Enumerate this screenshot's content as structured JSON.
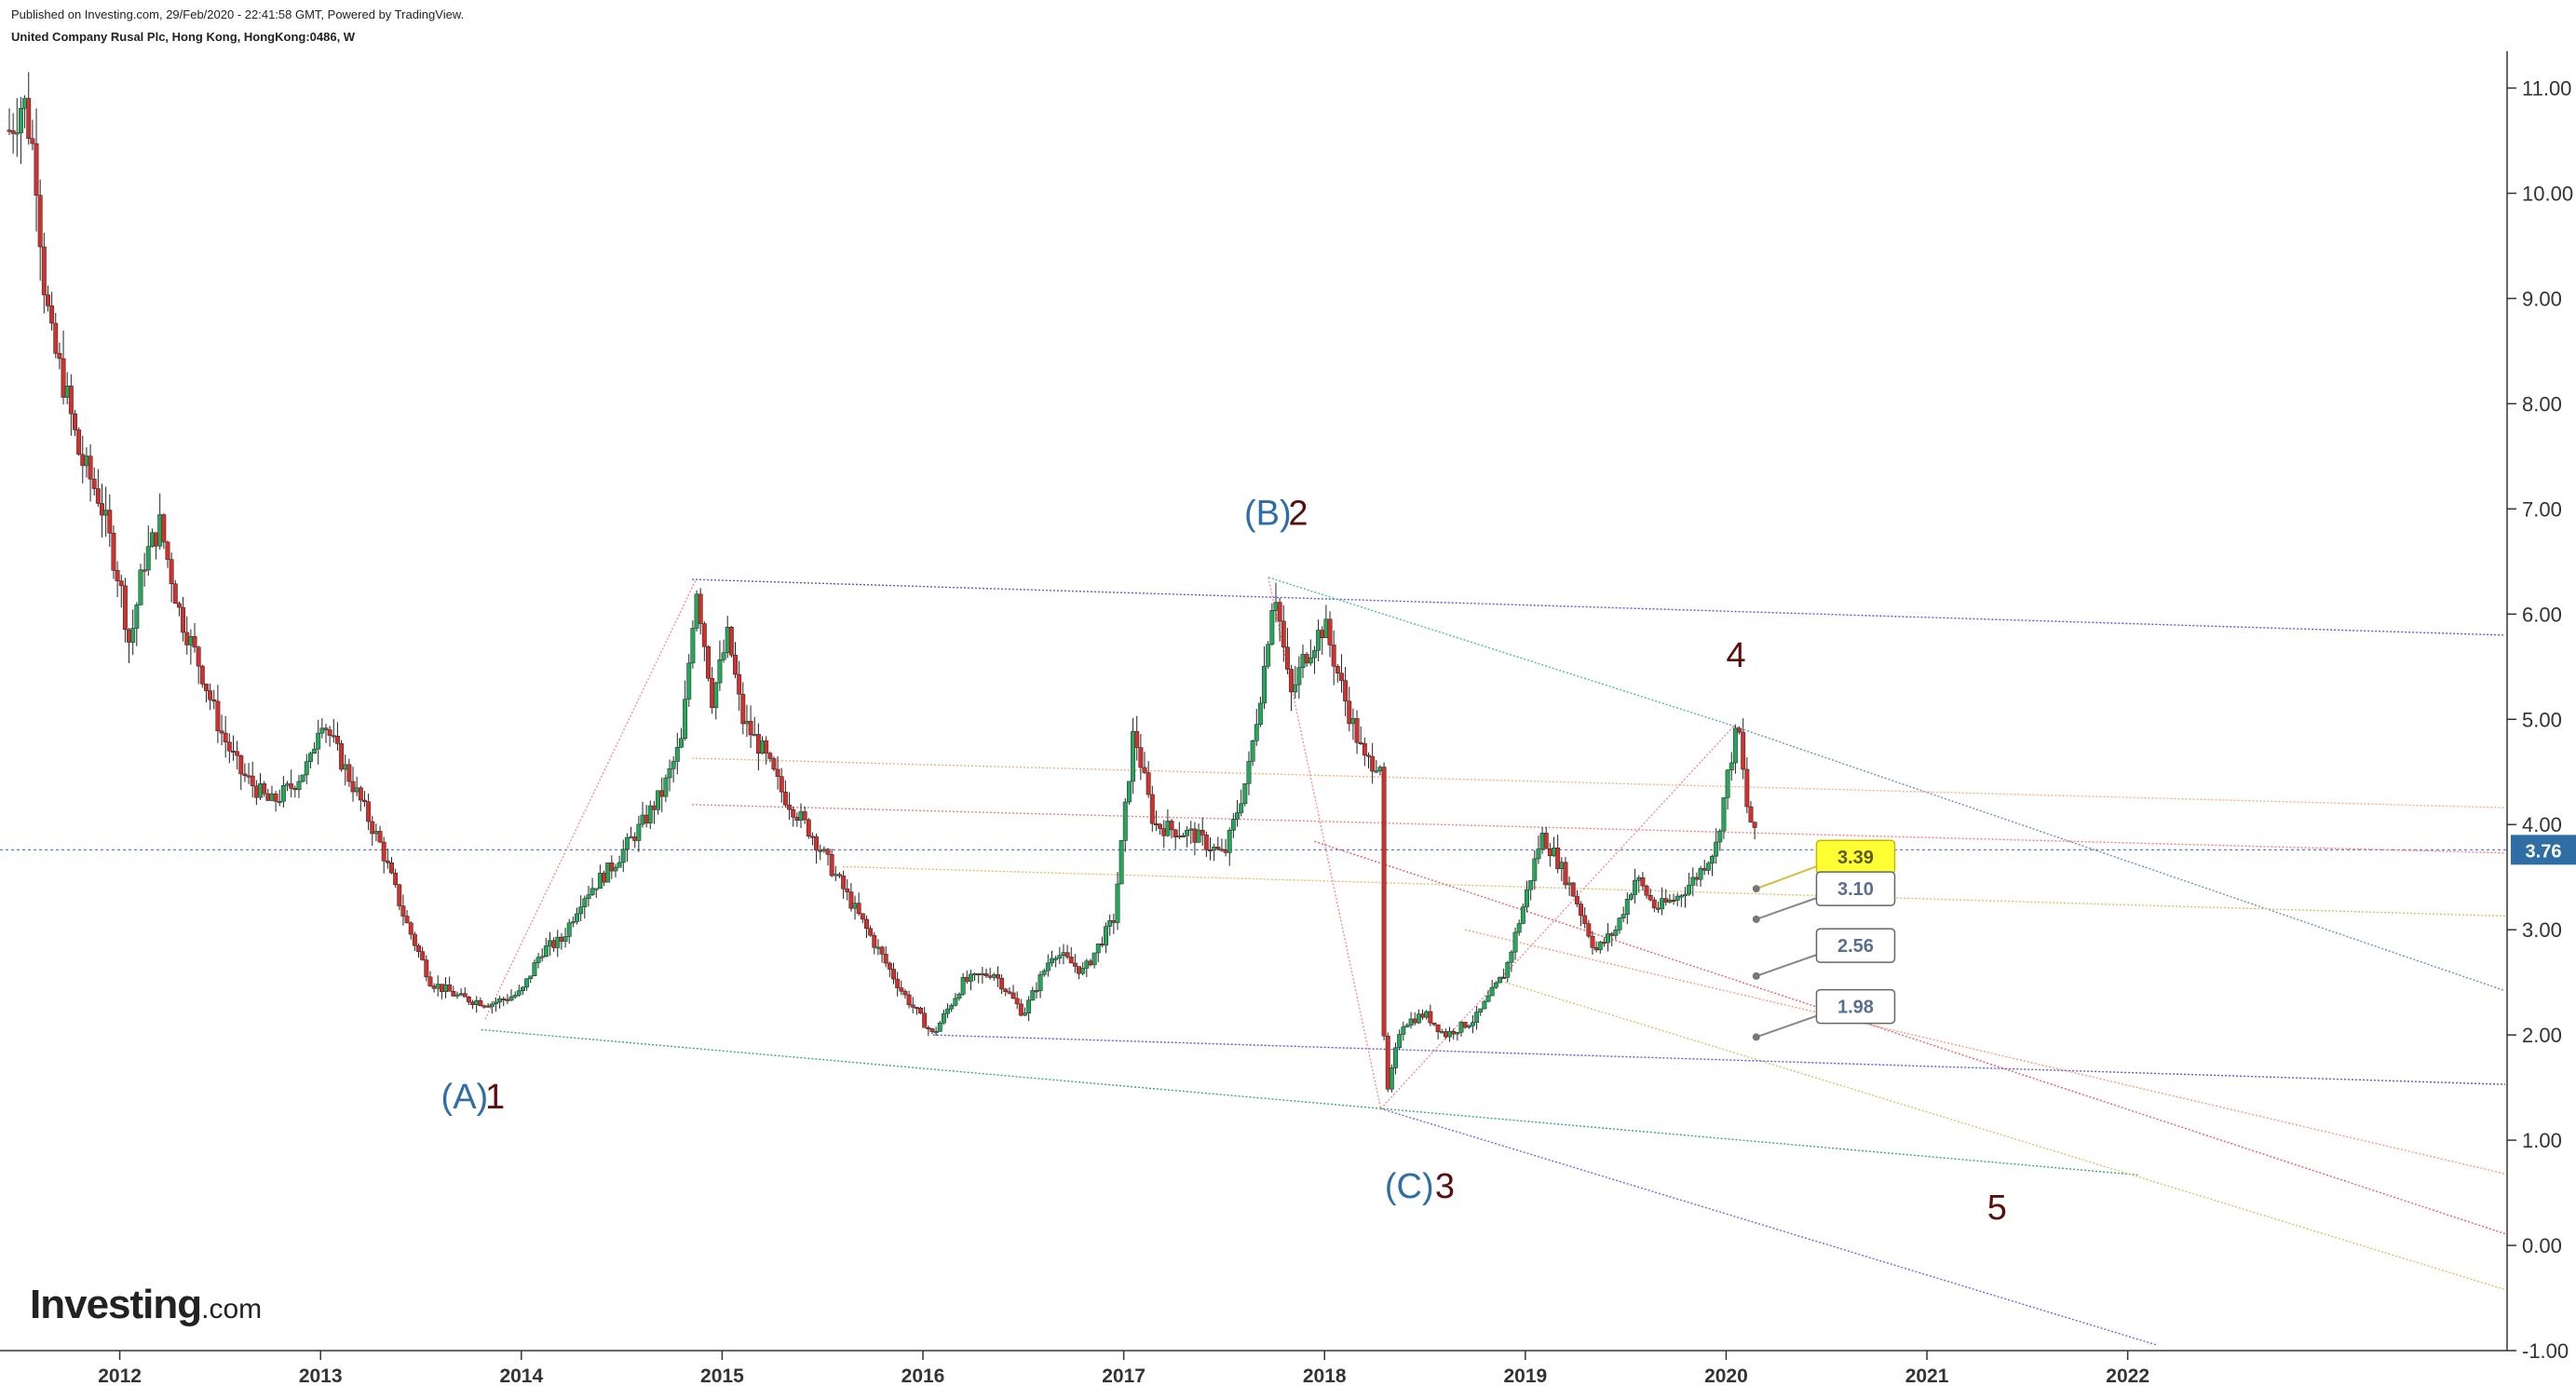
{
  "header": {
    "published": "Published on Investing.com, 29/Feb/2020 - 22:41:58 GMT, Powered by TradingView.",
    "instrument": "United Company Rusal Plc, Hong Kong, HongKong:0486, W"
  },
  "logo": {
    "brand": "Investing",
    "suffix": ".com"
  },
  "colors": {
    "up": "#26a65b",
    "down": "#d0312d",
    "wave_blue": "#2f6ea5",
    "wave_dark": "#5a0f0f",
    "current": "#2f6ea5",
    "highlight": "#ffff33"
  },
  "chart_data": {
    "type": "candlestick",
    "title": "",
    "x_axis": {
      "ticks": [
        "2012",
        "2013",
        "2014",
        "2015",
        "2016",
        "2017",
        "2018",
        "2019",
        "2020",
        "2021",
        "2022"
      ],
      "range": [
        2011.45,
        2023.88
      ]
    },
    "y_axis": {
      "ticks": [
        "11.00",
        "10.00",
        "9.00",
        "8.00",
        "7.00",
        "6.00",
        "5.00",
        "4.00",
        "3.00",
        "2.00",
        "1.00",
        "0.00",
        "-1.00"
      ],
      "range": [
        -1.0,
        11.35
      ],
      "side": "right"
    },
    "price_path": [
      [
        2011.45,
        10.6
      ],
      [
        2011.52,
        10.9
      ],
      [
        2011.58,
        10.3
      ],
      [
        2011.62,
        9.2
      ],
      [
        2011.66,
        8.6
      ],
      [
        2011.72,
        8.2
      ],
      [
        2011.8,
        7.5
      ],
      [
        2011.9,
        7.1
      ],
      [
        2012.0,
        6.3
      ],
      [
        2012.05,
        5.7
      ],
      [
        2012.12,
        6.5
      ],
      [
        2012.2,
        6.85
      ],
      [
        2012.3,
        6.0
      ],
      [
        2012.4,
        5.5
      ],
      [
        2012.5,
        4.9
      ],
      [
        2012.6,
        4.5
      ],
      [
        2012.75,
        4.2
      ],
      [
        2012.85,
        4.35
      ],
      [
        2012.95,
        4.6
      ],
      [
        2013.0,
        5.05
      ],
      [
        2013.08,
        4.7
      ],
      [
        2013.18,
        4.3
      ],
      [
        2013.3,
        3.8
      ],
      [
        2013.42,
        3.1
      ],
      [
        2013.55,
        2.5
      ],
      [
        2013.7,
        2.35
      ],
      [
        2013.85,
        2.3
      ],
      [
        2014.0,
        2.4
      ],
      [
        2014.1,
        2.8
      ],
      [
        2014.2,
        2.9
      ],
      [
        2014.3,
        3.3
      ],
      [
        2014.45,
        3.6
      ],
      [
        2014.6,
        4.0
      ],
      [
        2014.7,
        4.3
      ],
      [
        2014.8,
        4.8
      ],
      [
        2014.87,
        6.3
      ],
      [
        2014.95,
        5.2
      ],
      [
        2015.03,
        5.8
      ],
      [
        2015.1,
        5.0
      ],
      [
        2015.2,
        4.7
      ],
      [
        2015.3,
        4.3
      ],
      [
        2015.45,
        3.9
      ],
      [
        2015.6,
        3.4
      ],
      [
        2015.75,
        2.9
      ],
      [
        2015.9,
        2.4
      ],
      [
        2016.05,
        2.0
      ],
      [
        2016.2,
        2.5
      ],
      [
        2016.35,
        2.6
      ],
      [
        2016.5,
        2.2
      ],
      [
        2016.65,
        2.8
      ],
      [
        2016.8,
        2.6
      ],
      [
        2016.95,
        3.1
      ],
      [
        2017.05,
        4.9
      ],
      [
        2017.15,
        4.0
      ],
      [
        2017.35,
        3.9
      ],
      [
        2017.5,
        3.7
      ],
      [
        2017.62,
        4.5
      ],
      [
        2017.7,
        5.5
      ],
      [
        2017.75,
        6.3
      ],
      [
        2017.83,
        5.2
      ],
      [
        2017.9,
        5.6
      ],
      [
        2018.0,
        5.9
      ],
      [
        2018.1,
        5.2
      ],
      [
        2018.2,
        4.6
      ],
      [
        2018.28,
        4.6
      ],
      [
        2018.3,
        1.32
      ],
      [
        2018.38,
        2.1
      ],
      [
        2018.5,
        2.2
      ],
      [
        2018.6,
        2.0
      ],
      [
        2018.75,
        2.15
      ],
      [
        2018.9,
        2.6
      ],
      [
        2019.0,
        3.3
      ],
      [
        2019.08,
        3.9
      ],
      [
        2019.15,
        3.7
      ],
      [
        2019.25,
        3.3
      ],
      [
        2019.35,
        2.8
      ],
      [
        2019.45,
        3.0
      ],
      [
        2019.55,
        3.5
      ],
      [
        2019.65,
        3.2
      ],
      [
        2019.75,
        3.3
      ],
      [
        2019.85,
        3.5
      ],
      [
        2019.95,
        3.8
      ],
      [
        2020.02,
        4.6
      ],
      [
        2020.06,
        4.95
      ],
      [
        2020.1,
        4.2
      ],
      [
        2020.16,
        3.76
      ]
    ],
    "trend_lines": [
      {
        "from": [
          2014.85,
          6.33
        ],
        "to": [
          2023.88,
          5.8
        ],
        "color": "#5a5ad8"
      },
      {
        "from": [
          2017.72,
          6.35
        ],
        "to": [
          2020.0,
          4.96
        ],
        "color": "#4fb8a8"
      },
      {
        "from": [
          2020.0,
          4.96
        ],
        "to": [
          2023.88,
          2.42
        ],
        "color": "#6a8fbf"
      },
      {
        "from": [
          2013.8,
          2.05
        ],
        "to": [
          2022.05,
          0.67
        ],
        "color": "#38a86f"
      },
      {
        "from": [
          2018.28,
          1.3
        ],
        "to": [
          2022.15,
          -0.95
        ],
        "color": "#6a6ae0"
      },
      {
        "from": [
          2016.05,
          2.0
        ],
        "to": [
          2023.88,
          1.53
        ],
        "color": "#5a5ad8"
      },
      {
        "from": [
          2014.85,
          4.63
        ],
        "to": [
          2023.88,
          4.16
        ],
        "color": "#f0b37e"
      },
      {
        "from": [
          2014.85,
          4.19
        ],
        "to": [
          2023.88,
          3.73
        ],
        "color": "#f08080"
      },
      {
        "from": [
          2015.6,
          3.6
        ],
        "to": [
          2023.88,
          3.13
        ],
        "color": "#d8c070"
      },
      {
        "from": [
          2017.95,
          3.84
        ],
        "to": [
          2023.88,
          0.11
        ],
        "color": "#e06070"
      },
      {
        "from": [
          2018.7,
          3.0
        ],
        "to": [
          2023.88,
          0.68
        ],
        "color": "#f0a080"
      },
      {
        "from": [
          2018.9,
          2.5
        ],
        "to": [
          2023.88,
          -0.42
        ],
        "color": "#d8c070"
      },
      {
        "from": [
          2013.82,
          2.15
        ],
        "to": [
          2014.87,
          6.33
        ],
        "color": "#f09090"
      },
      {
        "from": [
          2017.72,
          6.35
        ],
        "to": [
          2018.28,
          1.3
        ],
        "color": "#f09090"
      },
      {
        "from": [
          2018.28,
          1.3
        ],
        "to": [
          2020.05,
          4.96
        ],
        "color": "#f09090"
      }
    ],
    "wave_labels": [
      {
        "x": 2013.6,
        "y": 1.3,
        "text": "(A)",
        "color": "#2f6ea5"
      },
      {
        "x": 2013.82,
        "y": 1.3,
        "text": "1",
        "color": "#5a0f0f"
      },
      {
        "x": 2017.6,
        "y": 6.85,
        "text": "(B)",
        "color": "#2f6ea5"
      },
      {
        "x": 2017.82,
        "y": 6.85,
        "text": "2",
        "color": "#5a0f0f"
      },
      {
        "x": 2018.3,
        "y": 0.45,
        "text": "(C)",
        "color": "#2f6ea5"
      },
      {
        "x": 2018.55,
        "y": 0.45,
        "text": "3",
        "color": "#5a0f0f"
      },
      {
        "x": 2020.0,
        "y": 5.5,
        "text": "4",
        "color": "#5a0f0f"
      },
      {
        "x": 2021.3,
        "y": 0.25,
        "text": "5",
        "color": "#5a0f0f"
      }
    ],
    "price_labels": [
      {
        "value": "3.39",
        "y": 3.69,
        "highlight": true
      },
      {
        "value": "3.10",
        "y": 3.39,
        "highlight": false
      },
      {
        "value": "2.56",
        "y": 2.85,
        "highlight": false
      },
      {
        "value": "1.98",
        "y": 2.27,
        "highlight": false
      }
    ],
    "target_points": [
      3.39,
      3.1,
      2.56,
      1.98
    ],
    "current_price": "3.76"
  }
}
